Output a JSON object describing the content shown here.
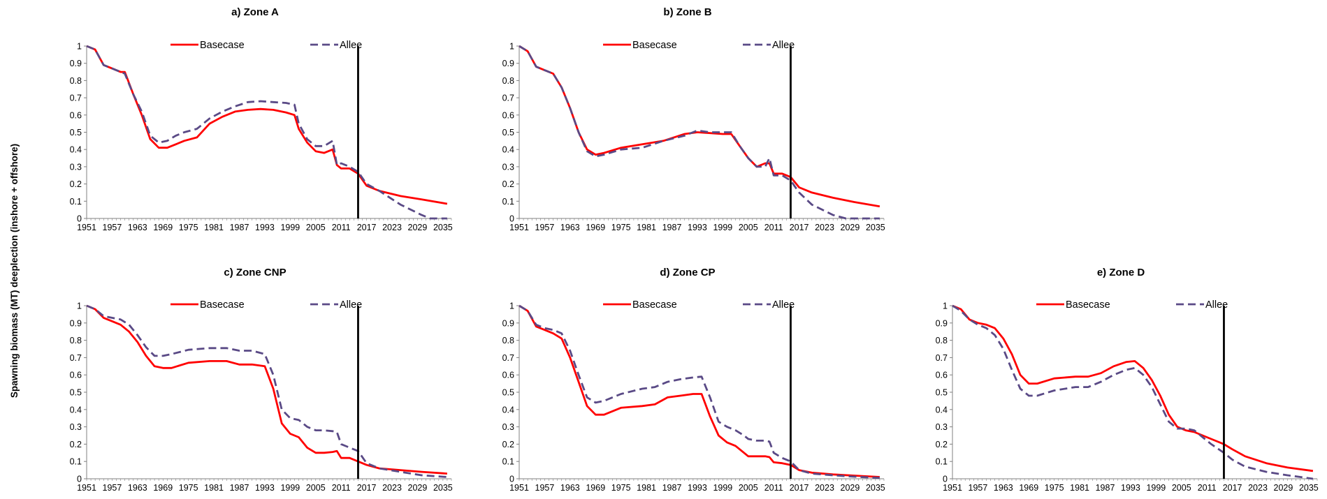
{
  "figure": {
    "ylabel": "Spawning biomass (MT) deeplection (inshore + offshore)"
  },
  "colors": {
    "basecase": "#ff0000",
    "allee": "#5a4a86",
    "axis": "#808080",
    "vline": "#000000"
  },
  "chart_data": [
    {
      "type": "line",
      "title": "a) Zone A",
      "panel": "zoneA",
      "ylim": [
        0,
        1
      ],
      "yticks": [
        "0",
        "0.1",
        "0.2",
        "0.3",
        "0.4",
        "0.5",
        "0.6",
        "0.7",
        "0.8",
        "0.9",
        "1"
      ],
      "xlim": [
        1951,
        2037
      ],
      "xticks": [
        "1951",
        "1957",
        "1963",
        "1969",
        "1975",
        "1981",
        "1987",
        "1993",
        "1999",
        "2005",
        "2011",
        "2017",
        "2023",
        "2029",
        "2035"
      ],
      "vline_x": 2015,
      "grid": false,
      "legend": "top",
      "series": [
        {
          "name": "Basecase",
          "style": "solid",
          "x": [
            1951,
            1953,
            1955,
            1957,
            1959,
            1960,
            1962,
            1964,
            1966,
            1968,
            1970,
            1972,
            1974,
            1977,
            1980,
            1983,
            1986,
            1989,
            1992,
            1995,
            1998,
            2000,
            2001,
            2003,
            2005,
            2007,
            2009,
            2010,
            2011,
            2013,
            2015,
            2017,
            2020,
            2025,
            2030,
            2036
          ],
          "y": [
            1.0,
            0.98,
            0.89,
            0.87,
            0.85,
            0.85,
            0.72,
            0.6,
            0.46,
            0.41,
            0.41,
            0.43,
            0.45,
            0.47,
            0.55,
            0.59,
            0.62,
            0.63,
            0.635,
            0.63,
            0.615,
            0.6,
            0.52,
            0.44,
            0.39,
            0.38,
            0.4,
            0.31,
            0.29,
            0.29,
            0.26,
            0.19,
            0.16,
            0.13,
            0.11,
            0.085
          ]
        },
        {
          "name": "Allee",
          "style": "dashed",
          "x": [
            1951,
            1953,
            1955,
            1957,
            1959,
            1960,
            1962,
            1964,
            1966,
            1968,
            1970,
            1972,
            1974,
            1977,
            1980,
            1983,
            1986,
            1989,
            1992,
            1995,
            1998,
            2000,
            2001,
            2003,
            2005,
            2007,
            2009,
            2010,
            2011,
            2013,
            2015,
            2017,
            2020,
            2025,
            2030,
            2032,
            2036
          ],
          "y": [
            1.0,
            0.98,
            0.89,
            0.87,
            0.85,
            0.84,
            0.72,
            0.62,
            0.48,
            0.44,
            0.45,
            0.48,
            0.5,
            0.52,
            0.58,
            0.62,
            0.65,
            0.675,
            0.68,
            0.675,
            0.67,
            0.66,
            0.55,
            0.46,
            0.42,
            0.42,
            0.45,
            0.31,
            0.32,
            0.3,
            0.27,
            0.2,
            0.16,
            0.08,
            0.02,
            0.0,
            0.0
          ]
        }
      ]
    },
    {
      "type": "line",
      "title": "b) Zone B",
      "panel": "zoneB",
      "ylim": [
        0,
        1
      ],
      "yticks": [
        "0",
        "0.1",
        "0.2",
        "0.3",
        "0.4",
        "0.5",
        "0.6",
        "0.7",
        "0.8",
        "0.9",
        "1"
      ],
      "xlim": [
        1951,
        2037
      ],
      "xticks": [
        "1951",
        "1957",
        "1963",
        "1969",
        "1975",
        "1981",
        "1987",
        "1993",
        "1999",
        "2005",
        "2011",
        "2017",
        "2023",
        "2029",
        "2035"
      ],
      "vline_x": 2015,
      "grid": false,
      "legend": "top",
      "series": [
        {
          "name": "Basecase",
          "style": "solid",
          "x": [
            1951,
            1953,
            1955,
            1957,
            1959,
            1961,
            1963,
            1965,
            1967,
            1969,
            1971,
            1975,
            1980,
            1985,
            1990,
            1993,
            1996,
            1999,
            2001,
            2003,
            2005,
            2007,
            2009,
            2010,
            2011,
            2013,
            2015,
            2017,
            2020,
            2025,
            2030,
            2036
          ],
          "y": [
            1.0,
            0.97,
            0.88,
            0.86,
            0.84,
            0.76,
            0.64,
            0.5,
            0.4,
            0.37,
            0.38,
            0.41,
            0.43,
            0.45,
            0.49,
            0.5,
            0.495,
            0.49,
            0.49,
            0.42,
            0.35,
            0.3,
            0.32,
            0.32,
            0.26,
            0.26,
            0.24,
            0.18,
            0.15,
            0.12,
            0.095,
            0.07
          ]
        },
        {
          "name": "Allee",
          "style": "dashed",
          "x": [
            1951,
            1953,
            1955,
            1957,
            1959,
            1961,
            1963,
            1965,
            1967,
            1969,
            1971,
            1975,
            1980,
            1985,
            1990,
            1993,
            1996,
            1999,
            2001,
            2003,
            2005,
            2007,
            2009,
            2010,
            2011,
            2013,
            2015,
            2017,
            2020,
            2025,
            2028,
            2036
          ],
          "y": [
            1.0,
            0.97,
            0.88,
            0.86,
            0.84,
            0.76,
            0.64,
            0.5,
            0.39,
            0.36,
            0.37,
            0.4,
            0.41,
            0.45,
            0.48,
            0.51,
            0.5,
            0.5,
            0.5,
            0.42,
            0.35,
            0.3,
            0.3,
            0.35,
            0.25,
            0.25,
            0.22,
            0.15,
            0.08,
            0.02,
            0.0,
            0.0
          ]
        }
      ]
    },
    {
      "type": "line",
      "title": "c) Zone CNP",
      "panel": "zoneCNP",
      "ylim": [
        0,
        1
      ],
      "yticks": [
        "0",
        "0.1",
        "0.2",
        "0.3",
        "0.4",
        "0.5",
        "0.6",
        "0.7",
        "0.8",
        "0.9",
        "1"
      ],
      "xlim": [
        1951,
        2037
      ],
      "xticks": [
        "1951",
        "1957",
        "1963",
        "1969",
        "1975",
        "1981",
        "1987",
        "1993",
        "1999",
        "2005",
        "2011",
        "2017",
        "2023",
        "2029",
        "2035"
      ],
      "vline_x": 2015,
      "grid": false,
      "legend": "top",
      "series": [
        {
          "name": "Basecase",
          "style": "solid",
          "x": [
            1951,
            1953,
            1955,
            1957,
            1959,
            1961,
            1963,
            1965,
            1967,
            1969,
            1971,
            1975,
            1980,
            1984,
            1987,
            1990,
            1993,
            1995,
            1997,
            1999,
            2001,
            2003,
            2005,
            2007,
            2009,
            2010,
            2011,
            2013,
            2015,
            2017,
            2020,
            2025,
            2030,
            2036
          ],
          "y": [
            1.0,
            0.98,
            0.93,
            0.91,
            0.89,
            0.85,
            0.79,
            0.71,
            0.65,
            0.64,
            0.64,
            0.67,
            0.68,
            0.68,
            0.66,
            0.66,
            0.65,
            0.52,
            0.32,
            0.26,
            0.24,
            0.18,
            0.15,
            0.15,
            0.155,
            0.16,
            0.12,
            0.12,
            0.1,
            0.08,
            0.06,
            0.05,
            0.04,
            0.03
          ]
        },
        {
          "name": "Allee",
          "style": "dashed",
          "x": [
            1951,
            1953,
            1955,
            1957,
            1959,
            1961,
            1963,
            1965,
            1967,
            1969,
            1971,
            1975,
            1980,
            1984,
            1987,
            1990,
            1993,
            1995,
            1997,
            1999,
            2001,
            2003,
            2005,
            2007,
            2009,
            2010,
            2011,
            2013,
            2015,
            2017,
            2020,
            2025,
            2030,
            2036
          ],
          "y": [
            1.0,
            0.98,
            0.94,
            0.93,
            0.92,
            0.89,
            0.83,
            0.76,
            0.71,
            0.71,
            0.72,
            0.745,
            0.755,
            0.755,
            0.74,
            0.74,
            0.72,
            0.6,
            0.4,
            0.35,
            0.34,
            0.3,
            0.28,
            0.28,
            0.275,
            0.27,
            0.2,
            0.18,
            0.16,
            0.09,
            0.06,
            0.04,
            0.02,
            0.01
          ]
        }
      ]
    },
    {
      "type": "line",
      "title": "d) Zone CP",
      "panel": "zoneCP",
      "ylim": [
        0,
        1
      ],
      "yticks": [
        "0",
        "0.1",
        "0.2",
        "0.3",
        "0.4",
        "0.5",
        "0.6",
        "0.7",
        "0.8",
        "0.9",
        "1"
      ],
      "xlim": [
        1951,
        2037
      ],
      "xticks": [
        "1951",
        "1957",
        "1963",
        "1969",
        "1975",
        "1981",
        "1987",
        "1993",
        "1999",
        "2005",
        "2011",
        "2017",
        "2023",
        "2029",
        "2035"
      ],
      "vline_x": 2015,
      "grid": false,
      "legend": "top",
      "series": [
        {
          "name": "Basecase",
          "style": "solid",
          "x": [
            1951,
            1953,
            1955,
            1957,
            1959,
            1961,
            1963,
            1965,
            1967,
            1969,
            1971,
            1975,
            1980,
            1983,
            1986,
            1989,
            1992,
            1994,
            1996,
            1998,
            2000,
            2002,
            2004,
            2005,
            2007,
            2009,
            2010,
            2011,
            2013,
            2015,
            2017,
            2020,
            2025,
            2030,
            2036
          ],
          "y": [
            1.0,
            0.97,
            0.88,
            0.86,
            0.84,
            0.81,
            0.7,
            0.56,
            0.42,
            0.37,
            0.37,
            0.41,
            0.42,
            0.43,
            0.47,
            0.48,
            0.49,
            0.49,
            0.36,
            0.25,
            0.21,
            0.19,
            0.15,
            0.13,
            0.13,
            0.13,
            0.125,
            0.095,
            0.09,
            0.08,
            0.05,
            0.035,
            0.025,
            0.018,
            0.01
          ]
        },
        {
          "name": "Allee",
          "style": "dashed",
          "x": [
            1951,
            1953,
            1955,
            1957,
            1959,
            1961,
            1963,
            1965,
            1967,
            1969,
            1971,
            1975,
            1980,
            1983,
            1986,
            1989,
            1992,
            1994,
            1996,
            1998,
            2000,
            2002,
            2004,
            2005,
            2007,
            2009,
            2010,
            2011,
            2013,
            2015,
            2017,
            2020,
            2025,
            2030,
            2036
          ],
          "y": [
            1.0,
            0.97,
            0.89,
            0.87,
            0.86,
            0.84,
            0.74,
            0.6,
            0.47,
            0.44,
            0.45,
            0.49,
            0.52,
            0.53,
            0.56,
            0.575,
            0.585,
            0.59,
            0.47,
            0.33,
            0.3,
            0.28,
            0.25,
            0.23,
            0.22,
            0.22,
            0.215,
            0.15,
            0.12,
            0.1,
            0.05,
            0.03,
            0.02,
            0.012,
            0.005
          ]
        }
      ]
    },
    {
      "type": "line",
      "title": "e) Zone D",
      "panel": "zoneD",
      "ylim": [
        0,
        1
      ],
      "yticks": [
        "0",
        "0.1",
        "0.2",
        "0.3",
        "0.4",
        "0.5",
        "0.6",
        "0.7",
        "0.8",
        "0.9",
        "1"
      ],
      "xlim": [
        1951,
        2037
      ],
      "xticks": [
        "1951",
        "1957",
        "1963",
        "1969",
        "1975",
        "1981",
        "1987",
        "1993",
        "1999",
        "2005",
        "2011",
        "2017",
        "2023",
        "2029",
        "2035"
      ],
      "vline_x": 2015,
      "grid": false,
      "legend": "top",
      "series": [
        {
          "name": "Basecase",
          "style": "solid",
          "x": [
            1951,
            1953,
            1955,
            1957,
            1959,
            1961,
            1963,
            1965,
            1967,
            1969,
            1971,
            1975,
            1980,
            1983,
            1986,
            1989,
            1992,
            1994,
            1996,
            1998,
            2000,
            2002,
            2004,
            2006,
            2008,
            2010,
            2012,
            2015,
            2017,
            2020,
            2025,
            2030,
            2036
          ],
          "y": [
            1.0,
            0.98,
            0.92,
            0.9,
            0.89,
            0.87,
            0.81,
            0.72,
            0.6,
            0.55,
            0.55,
            0.58,
            0.59,
            0.59,
            0.61,
            0.65,
            0.675,
            0.68,
            0.64,
            0.57,
            0.48,
            0.37,
            0.3,
            0.28,
            0.27,
            0.25,
            0.23,
            0.2,
            0.17,
            0.13,
            0.09,
            0.065,
            0.045
          ]
        },
        {
          "name": "Allee",
          "style": "dashed",
          "x": [
            1951,
            1953,
            1955,
            1957,
            1959,
            1961,
            1963,
            1965,
            1967,
            1969,
            1971,
            1975,
            1980,
            1983,
            1986,
            1989,
            1992,
            1994,
            1996,
            1998,
            2000,
            2002,
            2004,
            2006,
            2008,
            2010,
            2012,
            2015,
            2017,
            2020,
            2025,
            2030,
            2036
          ],
          "y": [
            1.0,
            0.97,
            0.92,
            0.89,
            0.87,
            0.83,
            0.75,
            0.63,
            0.52,
            0.48,
            0.48,
            0.51,
            0.53,
            0.53,
            0.56,
            0.6,
            0.63,
            0.64,
            0.6,
            0.53,
            0.43,
            0.33,
            0.29,
            0.29,
            0.28,
            0.24,
            0.2,
            0.15,
            0.11,
            0.07,
            0.04,
            0.02,
            0.0
          ]
        }
      ]
    }
  ]
}
